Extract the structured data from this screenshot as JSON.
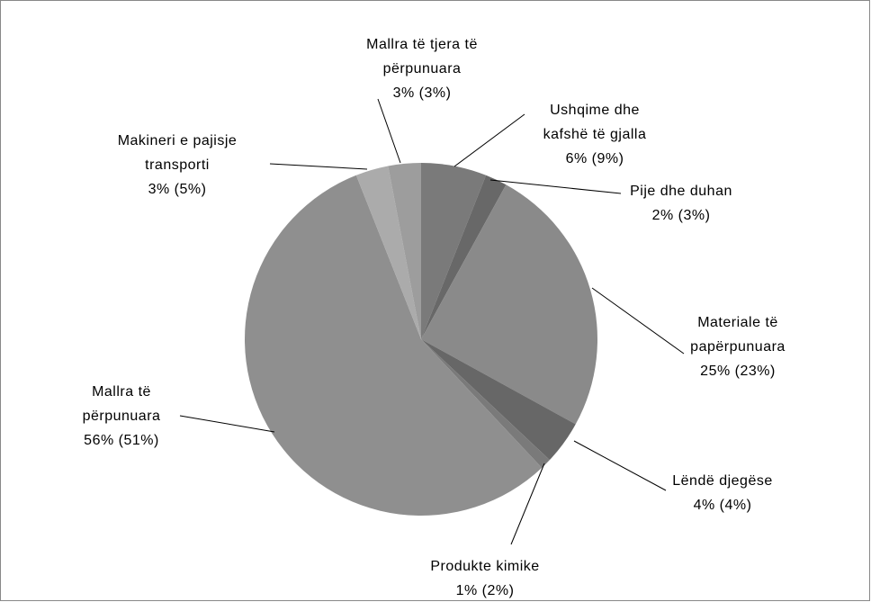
{
  "chart_data": {
    "type": "pie",
    "categories": [
      [
        "Ushqime dhe",
        "kafshë të gjalla"
      ],
      [
        "Pije dhe duhan"
      ],
      [
        "Materiale të",
        "papërpunuara"
      ],
      [
        "Lëndë djegëse"
      ],
      [
        "Produkte kimike"
      ],
      [
        "Mallra të",
        "përpunuara"
      ],
      [
        "Makineri e pajisje",
        "transporti"
      ],
      [
        "Mallra të tjera të",
        "përpunuara"
      ]
    ],
    "values": [
      6,
      2,
      25,
      4,
      1,
      56,
      3,
      3
    ],
    "value_labels": [
      "6% (9%)",
      "2% (3%)",
      "25% (23%)",
      "4% (4%)",
      "1% (2%)",
      "56% (51%)",
      "3% (5%)",
      "3% (3%)"
    ],
    "colors": [
      "#7a7a7a",
      "#686868",
      "#8a8a8a",
      "#676767",
      "#7a7a7a",
      "#8f8f8f",
      "#ababab",
      "#9d9d9d"
    ]
  }
}
